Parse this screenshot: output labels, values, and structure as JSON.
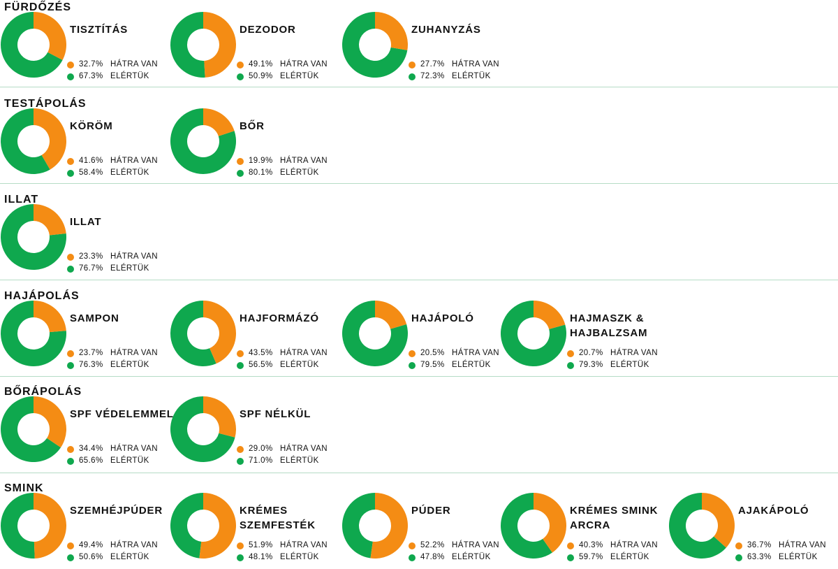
{
  "colors": {
    "remaining": "#f48c14",
    "achieved": "#0fa84e",
    "separator": "#b5dcc6"
  },
  "labels": {
    "remaining": "HÁTRA VAN",
    "achieved": "ELÉRTÜK"
  },
  "sections": [
    {
      "title": "FÜRDŐZÉS",
      "items": [
        {
          "name": "TISZTÍTÁS",
          "remaining_label": "32.7%",
          "achieved_label": "67.3%"
        },
        {
          "name": "DEZODOR",
          "remaining_label": "49.1%",
          "achieved_label": "50.9%"
        },
        {
          "name": "ZUHANYZÁS",
          "remaining_label": "27.7%",
          "achieved_label": "72.3%"
        }
      ]
    },
    {
      "title": "TESTÁPOLÁS",
      "items": [
        {
          "name": "KÖRÖM",
          "remaining_label": "41.6%",
          "achieved_label": "58.4%"
        },
        {
          "name": "BŐR",
          "remaining_label": "19.9%",
          "achieved_label": "80.1%"
        }
      ]
    },
    {
      "title": "ILLAT",
      "items": [
        {
          "name": "ILLAT",
          "remaining_label": "23.3%",
          "achieved_label": "76.7%"
        }
      ]
    },
    {
      "title": "HAJÁPOLÁS",
      "items": [
        {
          "name": "SAMPON",
          "remaining_label": "23.7%",
          "achieved_label": "76.3%"
        },
        {
          "name": "HAJFORMÁZÓ",
          "remaining_label": "43.5%",
          "achieved_label": "56.5%"
        },
        {
          "name": "HAJÁPOLÓ",
          "remaining_label": "20.5%",
          "achieved_label": "79.5%"
        },
        {
          "name": "HAJMASZK & HAJBALZSAM",
          "remaining_label": "20.7%",
          "achieved_label": "79.3%"
        }
      ]
    },
    {
      "title": "BŐRÁPOLÁS",
      "items": [
        {
          "name": "SPF VÉDELEMMEL",
          "remaining_label": "34.4%",
          "achieved_label": "65.6%"
        },
        {
          "name": "SPF NÉLKÜL",
          "remaining_label": "29.0%",
          "achieved_label": "71.0%"
        }
      ]
    },
    {
      "title": "SMINK",
      "items": [
        {
          "name": "SZEMHÉJPÚDER",
          "remaining_label": "49.4%",
          "achieved_label": "50.6%"
        },
        {
          "name": "KRÉMES SZEMFESTÉK",
          "remaining_label": "51.9%",
          "achieved_label": "48.1%"
        },
        {
          "name": "PÚDER",
          "remaining_label": "52.2%",
          "achieved_label": "47.8%"
        },
        {
          "name": "KRÉMES SMINK ARCRA",
          "remaining_label": "40.3%",
          "achieved_label": "59.7%"
        },
        {
          "name": "AJAKÁPOLÓ",
          "remaining_label": "36.7%",
          "achieved_label": "63.3%"
        }
      ]
    }
  ],
  "chart_data": {
    "type": "pie",
    "variant": "donut",
    "series": [
      {
        "name": "HÁTRA VAN"
      },
      {
        "name": "ELÉRTÜK"
      }
    ],
    "groups": [
      {
        "group": "FÜRDŐZÉS",
        "charts": [
          {
            "title": "TISZTÍTÁS",
            "values": [
              32.7,
              67.3
            ]
          },
          {
            "title": "DEZODOR",
            "values": [
              49.1,
              50.9
            ]
          },
          {
            "title": "ZUHANYZÁS",
            "values": [
              27.7,
              72.3
            ]
          }
        ]
      },
      {
        "group": "TESTÁPOLÁS",
        "charts": [
          {
            "title": "KÖRÖM",
            "values": [
              41.6,
              58.4
            ]
          },
          {
            "title": "BŐR",
            "values": [
              19.9,
              80.1
            ]
          }
        ]
      },
      {
        "group": "ILLAT",
        "charts": [
          {
            "title": "ILLAT",
            "values": [
              23.3,
              76.7
            ]
          }
        ]
      },
      {
        "group": "HAJÁPOLÁS",
        "charts": [
          {
            "title": "SAMPON",
            "values": [
              23.7,
              76.3
            ]
          },
          {
            "title": "HAJFORMÁZÓ",
            "values": [
              43.5,
              56.5
            ]
          },
          {
            "title": "HAJÁPOLÓ",
            "values": [
              20.5,
              79.5
            ]
          },
          {
            "title": "HAJMASZK & HAJBALZSAM",
            "values": [
              20.7,
              79.3
            ]
          }
        ]
      },
      {
        "group": "BŐRÁPOLÁS",
        "charts": [
          {
            "title": "SPF VÉDELEMMEL",
            "values": [
              34.4,
              65.6
            ]
          },
          {
            "title": "SPF NÉLKÜL",
            "values": [
              29.0,
              71.0
            ]
          }
        ]
      },
      {
        "group": "SMINK",
        "charts": [
          {
            "title": "SZEMHÉJPÚDER",
            "values": [
              49.4,
              50.6
            ]
          },
          {
            "title": "KRÉMES SZEMFESTÉK",
            "values": [
              51.9,
              48.1
            ]
          },
          {
            "title": "PÚDER",
            "values": [
              52.2,
              47.8
            ]
          },
          {
            "title": "KRÉMES SMINK ARCRA",
            "values": [
              40.3,
              59.7
            ]
          },
          {
            "title": "AJAKÁPOLÓ",
            "values": [
              36.7,
              63.3
            ]
          }
        ]
      }
    ]
  }
}
